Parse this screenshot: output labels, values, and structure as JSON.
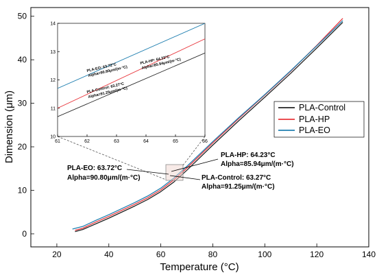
{
  "chart_data": [
    {
      "type": "line",
      "title": "",
      "xlabel": "Temperature (°C)",
      "ylabel": "Dimension (μm)",
      "xlim": [
        10,
        140
      ],
      "ylim": [
        -3,
        52
      ],
      "xticks": [
        20,
        40,
        60,
        80,
        100,
        120,
        140
      ],
      "yticks": [
        0,
        10,
        20,
        30,
        40,
        50
      ],
      "legend_position": "right",
      "series": [
        {
          "name": "PLA-Control",
          "color": "#222222",
          "points": [
            [
              27,
              0.5
            ],
            [
              30,
              1.0
            ],
            [
              35,
              2.3
            ],
            [
              40,
              3.6
            ],
            [
              45,
              5.0
            ],
            [
              50,
              6.4
            ],
            [
              55,
              7.9
            ],
            [
              60,
              9.7
            ],
            [
              65,
              11.9
            ],
            [
              70,
              14.6
            ],
            [
              80,
              20.4
            ],
            [
              90,
              26.0
            ],
            [
              100,
              31.4
            ],
            [
              110,
              36.9
            ],
            [
              120,
              42.7
            ],
            [
              130,
              48.6
            ]
          ]
        },
        {
          "name": "PLA-HP",
          "color": "#e8343a",
          "points": [
            [
              27,
              0.8
            ],
            [
              30,
              1.3
            ],
            [
              35,
              2.7
            ],
            [
              40,
              4.0
            ],
            [
              45,
              5.4
            ],
            [
              50,
              6.8
            ],
            [
              55,
              8.3
            ],
            [
              60,
              10.1
            ],
            [
              65,
              12.4
            ],
            [
              70,
              15.1
            ],
            [
              80,
              20.9
            ],
            [
              90,
              26.5
            ],
            [
              100,
              31.9
            ],
            [
              110,
              37.4
            ],
            [
              120,
              43.3
            ],
            [
              130,
              49.5
            ]
          ]
        },
        {
          "name": "PLA-EO",
          "color": "#1f7fb0",
          "points": [
            [
              26,
              1.1
            ],
            [
              30,
              1.7
            ],
            [
              35,
              3.1
            ],
            [
              40,
              4.4
            ],
            [
              45,
              5.8
            ],
            [
              50,
              7.2
            ],
            [
              55,
              8.7
            ],
            [
              60,
              10.5
            ],
            [
              65,
              12.8
            ],
            [
              70,
              15.5
            ],
            [
              80,
              21.2
            ],
            [
              90,
              26.7
            ],
            [
              100,
              32.0
            ],
            [
              110,
              37.5
            ],
            [
              120,
              43.2
            ],
            [
              130,
              49.0
            ]
          ]
        }
      ],
      "annotations": [
        {
          "lines": [
            "PLA-HP: 64.23°C",
            "Alpha=85.94μm/(m·°C)"
          ],
          "x": 64.23,
          "y": 12.2
        },
        {
          "lines": [
            "PLA-EO: 63.72°C",
            "Alpha=90.80μm/(m·°C)"
          ],
          "x": 63.72,
          "y": 12.3
        },
        {
          "lines": [
            "PLA-Control: 63.27°C",
            "Alpha=91.25μm/(m·°C)"
          ],
          "x": 63.27,
          "y": 11.3
        }
      ]
    },
    {
      "type": "line",
      "title": "",
      "xlabel": "",
      "ylabel": "",
      "xlim": [
        61,
        66
      ],
      "ylim": [
        10,
        14
      ],
      "xticks": [
        61,
        62,
        63,
        64,
        65,
        66
      ],
      "yticks": [
        10,
        11,
        12,
        13,
        14
      ],
      "series": [
        {
          "name": "PLA-Control",
          "color": "#222222",
          "points": [
            [
              61,
              10.7
            ],
            [
              66,
              12.95
            ]
          ]
        },
        {
          "name": "PLA-HP",
          "color": "#e8343a",
          "points": [
            [
              61,
              11.0
            ],
            [
              66,
              13.45
            ]
          ]
        },
        {
          "name": "PLA-EO",
          "color": "#1f7fb0",
          "points": [
            [
              61,
              11.7
            ],
            [
              66,
              14.0
            ]
          ]
        }
      ],
      "annotations": [
        {
          "lines": [
            "PLA-EO: 63.72°C",
            "Alpha=90.80μm/(m·°C)"
          ],
          "x": 62.2,
          "y": 11.95
        },
        {
          "lines": [
            "PLA-HP: 64.23°C",
            "Alpha=85.94μm/(m·°C)"
          ],
          "x": 64.0,
          "y": 12.2
        },
        {
          "lines": [
            "PLA-Control: 63.27°C",
            "Alpha=91.25μm/(m·°C)"
          ],
          "x": 62.2,
          "y": 11.35
        }
      ]
    }
  ]
}
